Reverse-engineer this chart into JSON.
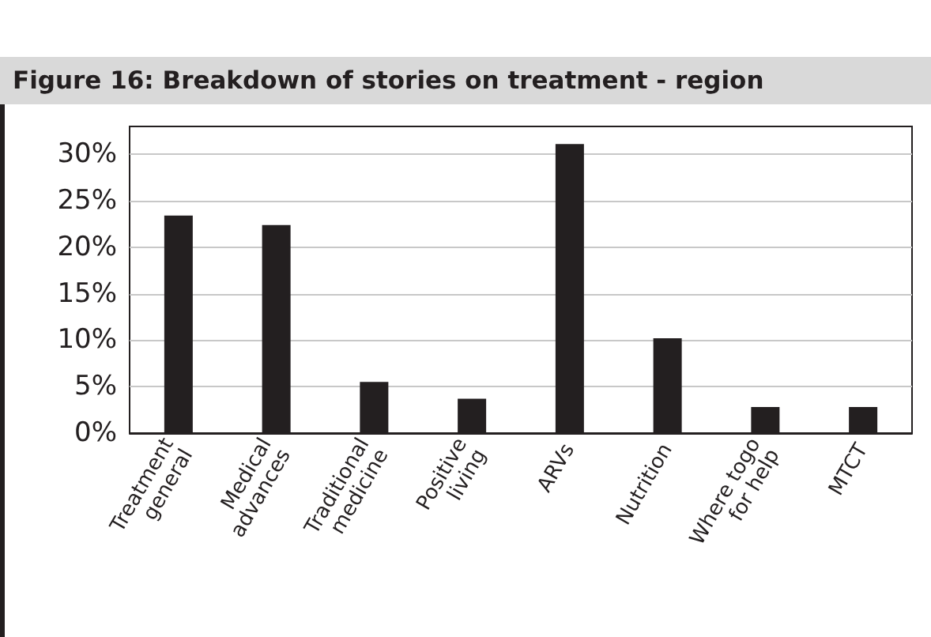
{
  "chart_data": {
    "type": "bar",
    "title": "Figure 16: Breakdown of stories on treatment - region",
    "categories": [
      "Treatment\ngeneral",
      "Medical\nadvances",
      "Traditional\nmedicine",
      "Positive\nliving",
      "ARVs",
      "Nutrition",
      "Where togo\nfor help",
      "MTCT"
    ],
    "values": [
      23.4,
      22.4,
      5.5,
      3.7,
      31.1,
      10.2,
      2.8,
      2.8
    ],
    "color": "#231f20",
    "ylim": [
      0,
      33
    ],
    "yticks": [
      {
        "value": 0,
        "label": "0%"
      },
      {
        "value": 5,
        "label": "5%"
      },
      {
        "value": 10,
        "label": "10%"
      },
      {
        "value": 15,
        "label": "15%"
      },
      {
        "value": 20,
        "label": "20%"
      },
      {
        "value": 25,
        "label": "25%"
      },
      {
        "value": 30,
        "label": "30%"
      }
    ],
    "grid": true
  }
}
